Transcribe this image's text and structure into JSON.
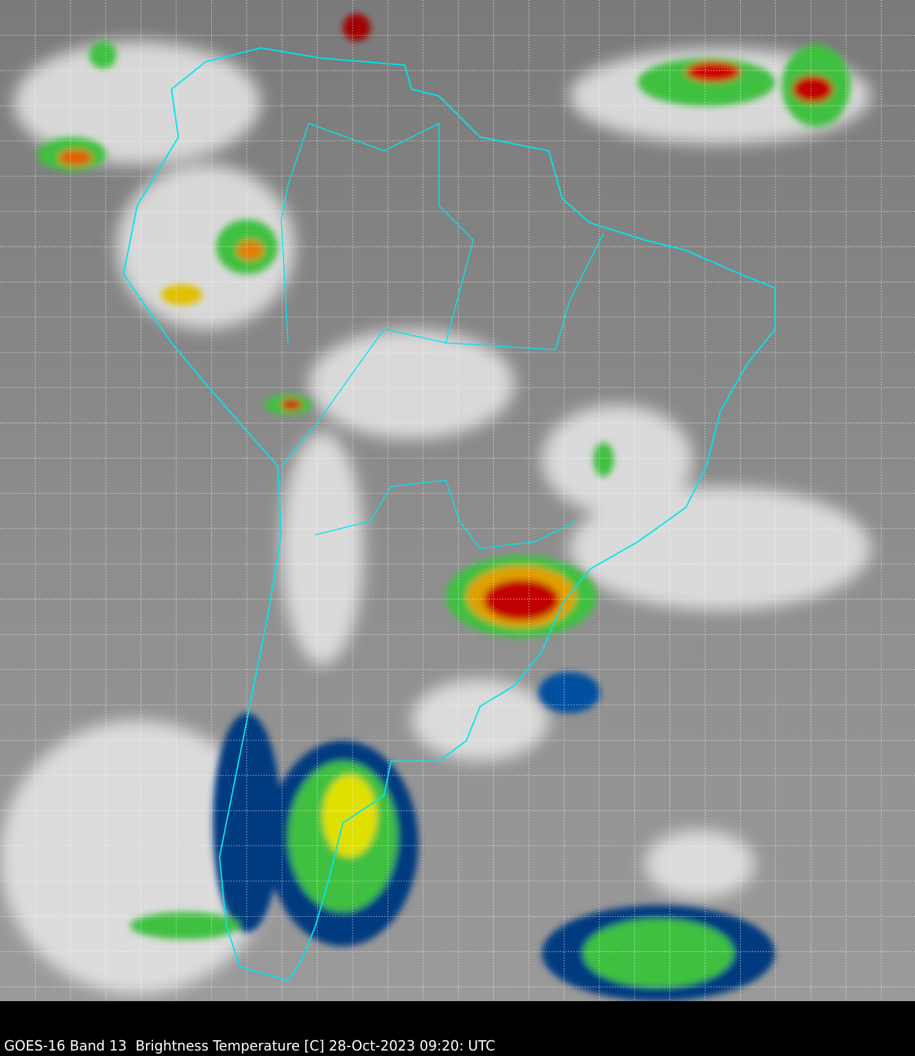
{
  "caption": "GOES-16 Band 13  Brightness Temperature [C] 28-Oct-2023 09:20: UTC",
  "map": {
    "satellite": "GOES-16",
    "band": "Band 13",
    "variable": "Brightness Temperature [C]",
    "date": "28-Oct-2023",
    "time": "09:20 UTC",
    "border_color": "#00e5ee",
    "grid_color": "#ffffff",
    "colorscale": [
      "#00204a",
      "#0050a0",
      "#00a0c0",
      "#40c040",
      "#c0f000",
      "#f0e000",
      "#f08000",
      "#d00000",
      "#600000",
      "#ffffff"
    ]
  }
}
